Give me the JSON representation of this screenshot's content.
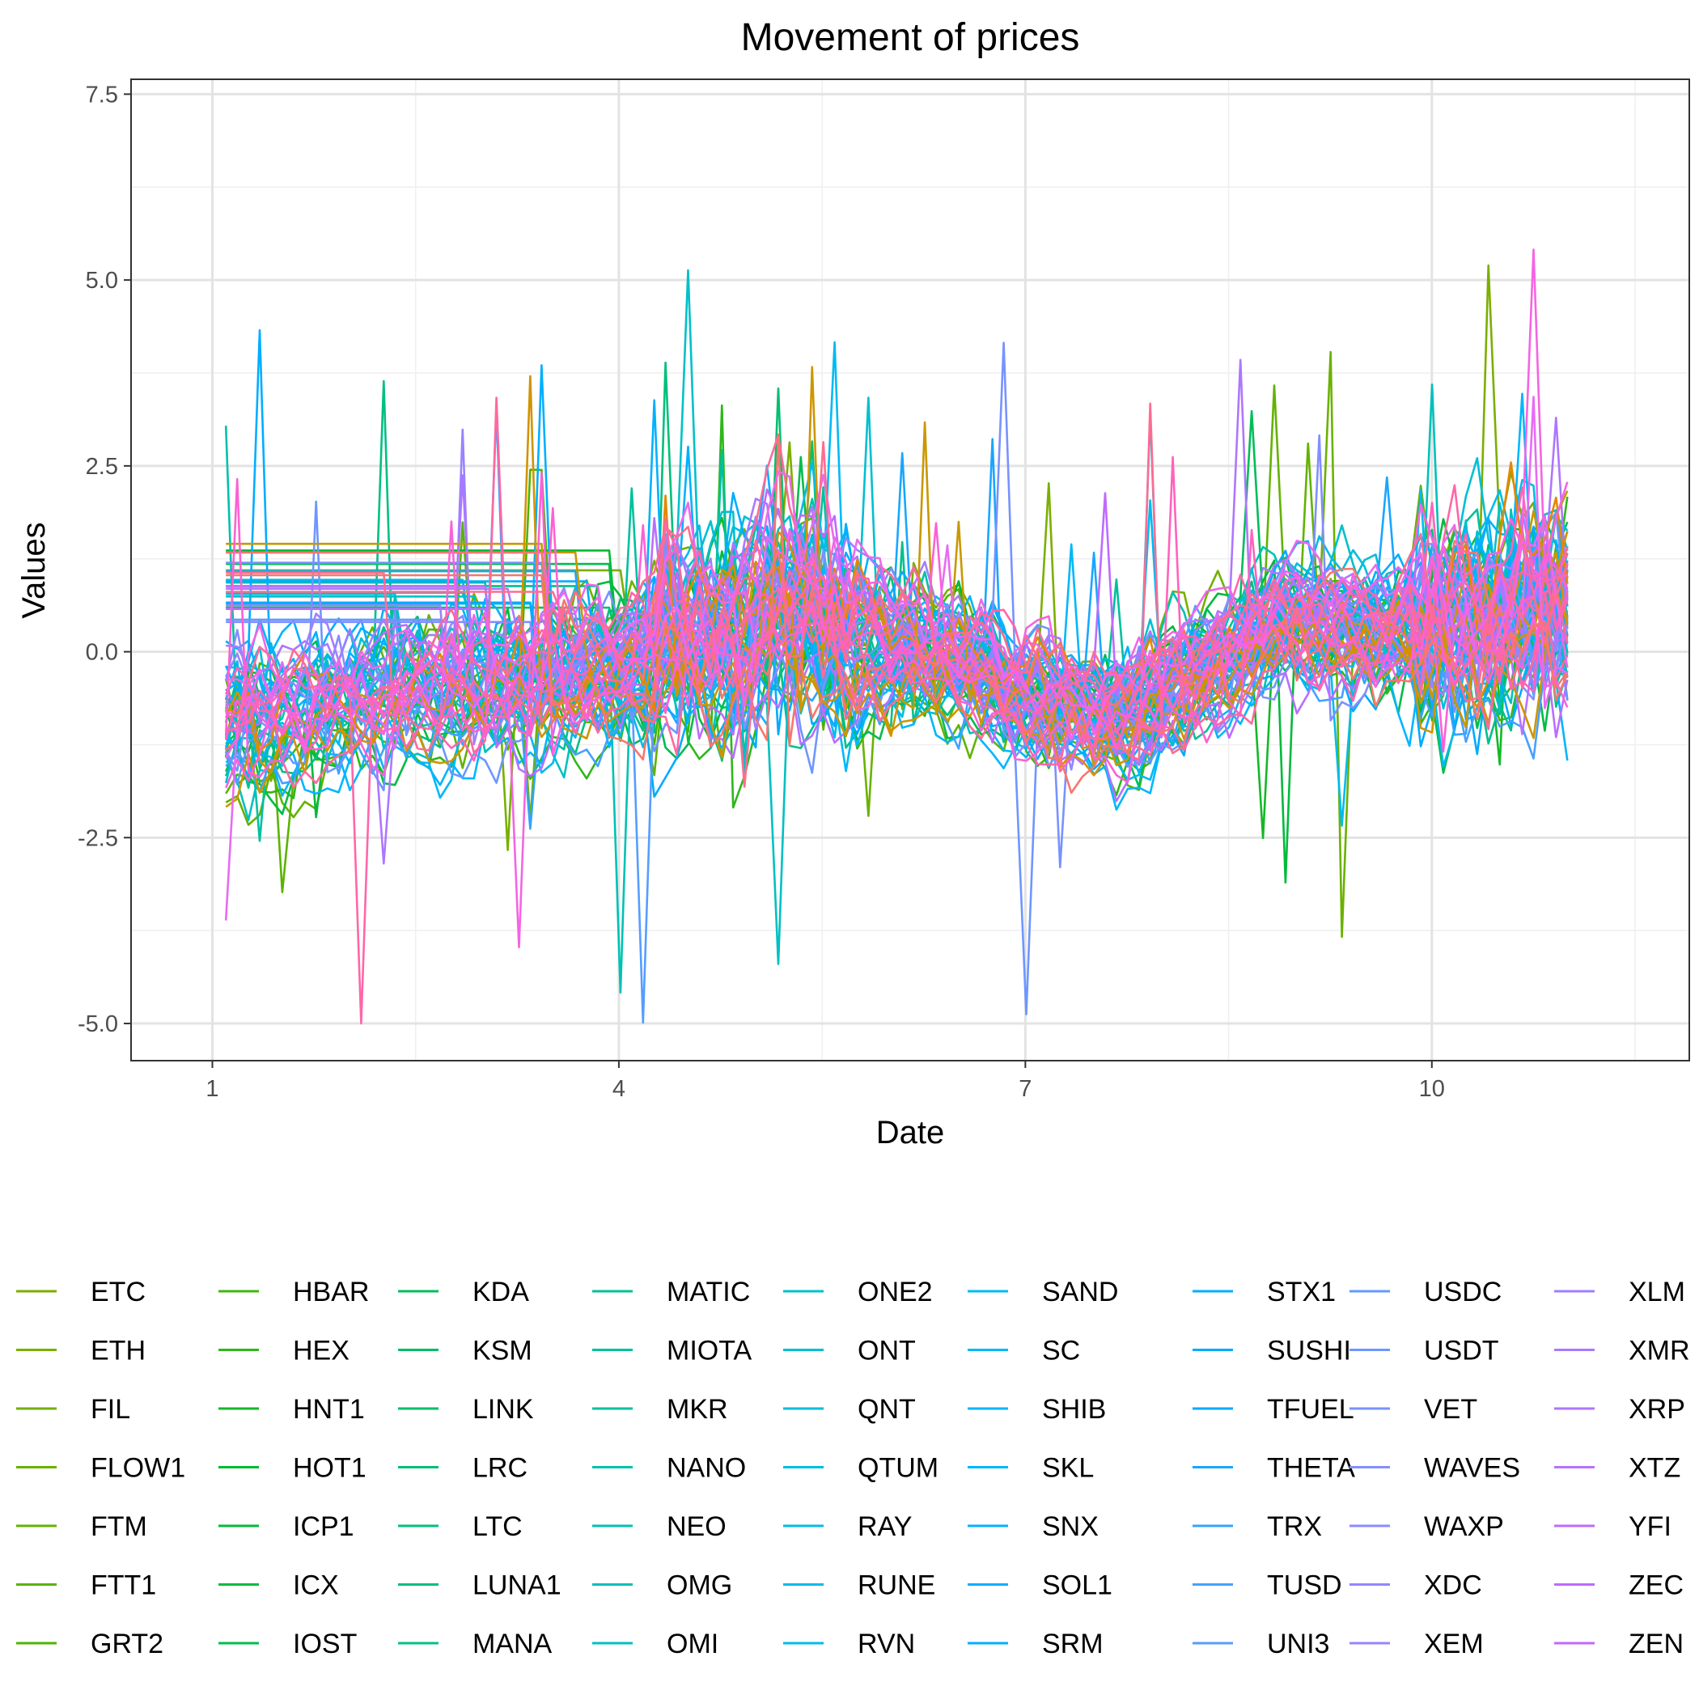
{
  "chart_data": {
    "type": "line",
    "title": "Movement of prices",
    "xlabel": "Date",
    "ylabel": "Values",
    "xlim": [
      0.4,
      11.9
    ],
    "ylim": [
      -5.5,
      7.7
    ],
    "x_ticks": [
      1,
      4,
      7,
      10
    ],
    "y_ticks": [
      7.5,
      5.0,
      2.5,
      0.0,
      -2.5,
      -5.0
    ],
    "x_tick_labels": [
      "1",
      "4",
      "7",
      "10"
    ],
    "y_tick_labels": [
      "7.5",
      "5.0",
      "2.5",
      "0.0",
      "-2.5",
      "-5.0"
    ],
    "grid": true,
    "legend_position": "bottom",
    "legend_columns": 9,
    "x_start": 1.1,
    "x_end": 11.0,
    "n_points": 120,
    "series": [
      {
        "name": "ETC",
        "color": "#7CAE00"
      },
      {
        "name": "ETH",
        "color": "#78AF00"
      },
      {
        "name": "FIL",
        "color": "#72B000"
      },
      {
        "name": "FLOW1",
        "color": "#6BB100"
      },
      {
        "name": "FTM",
        "color": "#63B200"
      },
      {
        "name": "FTT1",
        "color": "#5BB300"
      },
      {
        "name": "GRT2",
        "color": "#50B400"
      },
      {
        "name": "HBAR",
        "color": "#41B60C"
      },
      {
        "name": "HEX",
        "color": "#2EB71A"
      },
      {
        "name": "HNT1",
        "color": "#14B826"
      },
      {
        "name": "HOT1",
        "color": "#00B931"
      },
      {
        "name": "ICP1",
        "color": "#00BA3B"
      },
      {
        "name": "ICX",
        "color": "#00BB45"
      },
      {
        "name": "IOST",
        "color": "#00BC4F"
      },
      {
        "name": "KDA",
        "color": "#00BC58"
      },
      {
        "name": "KSM",
        "color": "#00BD61"
      },
      {
        "name": "LINK",
        "color": "#00BE6A"
      },
      {
        "name": "LRC",
        "color": "#00BE72"
      },
      {
        "name": "LTC",
        "color": "#00BF7B"
      },
      {
        "name": "LUNA1",
        "color": "#00BF83"
      },
      {
        "name": "MANA",
        "color": "#00C08B"
      },
      {
        "name": "MATIC",
        "color": "#00C094"
      },
      {
        "name": "MIOTA",
        "color": "#00C09C"
      },
      {
        "name": "MKR",
        "color": "#00C0A3"
      },
      {
        "name": "NANO",
        "color": "#00C1AB"
      },
      {
        "name": "NEO",
        "color": "#00C1B3"
      },
      {
        "name": "OMG",
        "color": "#00C0BA"
      },
      {
        "name": "OMI",
        "color": "#00C0C2"
      },
      {
        "name": "ONE2",
        "color": "#00C0C9"
      },
      {
        "name": "ONT",
        "color": "#00BFD0"
      },
      {
        "name": "QNT",
        "color": "#00BFD6"
      },
      {
        "name": "QTUM",
        "color": "#00BEDC"
      },
      {
        "name": "RAY",
        "color": "#00BDE2"
      },
      {
        "name": "RUNE",
        "color": "#00BCE8"
      },
      {
        "name": "RVN",
        "color": "#00BBEE"
      },
      {
        "name": "SAND",
        "color": "#00BAF3"
      },
      {
        "name": "SC",
        "color": "#00B8F7"
      },
      {
        "name": "SHIB",
        "color": "#00B7FC"
      },
      {
        "name": "SKL",
        "color": "#00B5FF"
      },
      {
        "name": "SNX",
        "color": "#00B3FF"
      },
      {
        "name": "SOL1",
        "color": "#00B1FF"
      },
      {
        "name": "SRM",
        "color": "#00AFFF"
      },
      {
        "name": "STX1",
        "color": "#00ADFF"
      },
      {
        "name": "SUSHI",
        "color": "#00ABFD"
      },
      {
        "name": "TFUEL",
        "color": "#00A9FF"
      },
      {
        "name": "THETA",
        "color": "#18A6FF"
      },
      {
        "name": "TRX",
        "color": "#33A3FF"
      },
      {
        "name": "TUSD",
        "color": "#46A0FF"
      },
      {
        "name": "UNI3",
        "color": "#559DFF"
      },
      {
        "name": "USDC",
        "color": "#6299FF"
      },
      {
        "name": "USDT",
        "color": "#6E96FF"
      },
      {
        "name": "VET",
        "color": "#7892FF"
      },
      {
        "name": "WAVES",
        "color": "#828EFF"
      },
      {
        "name": "WAXP",
        "color": "#8B8AFF"
      },
      {
        "name": "XDC",
        "color": "#9386FF"
      },
      {
        "name": "XEM",
        "color": "#9A82FF"
      },
      {
        "name": "XLM",
        "color": "#A17EFF"
      },
      {
        "name": "XMR",
        "color": "#A87AFF"
      },
      {
        "name": "XRP",
        "color": "#AE76FF"
      },
      {
        "name": "XTZ",
        "color": "#B472FF"
      },
      {
        "name": "YFI",
        "color": "#B96EFF"
      },
      {
        "name": "ZEC",
        "color": "#BE6AFF"
      },
      {
        "name": "ZEN",
        "color": "#C366FF"
      }
    ],
    "extra_unlabeled_palette": [
      "#C49A00",
      "#C99800",
      "#CD9600",
      "#D09400",
      "#E58700",
      "#F8766D",
      "#FB61D7",
      "#FF6C91",
      "#FF689F",
      "#FF66A8",
      "#FF62BC",
      "#F564E3",
      "#E76BF3",
      "#FA62DB",
      "#FF6A98",
      "#F8766D",
      "#FF64B0",
      "#EF67EB",
      "#FF6C91",
      "#FD61D1"
    ]
  }
}
